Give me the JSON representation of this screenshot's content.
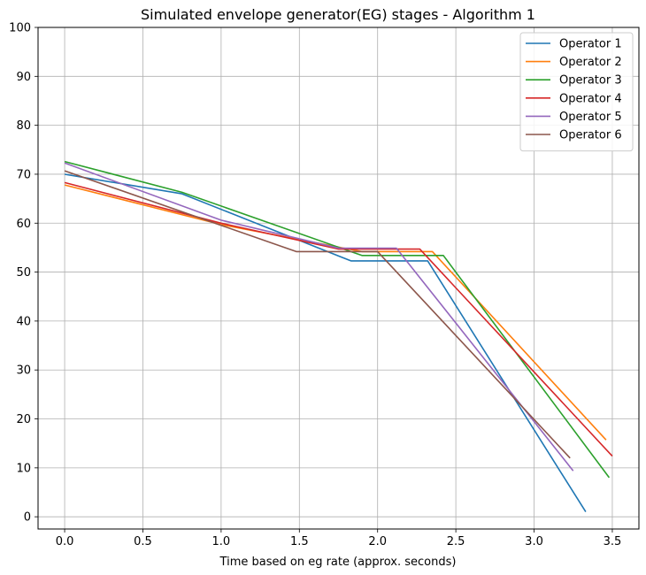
{
  "chart_data": {
    "type": "line",
    "title": "Simulated envelope generator(EG) stages - Algorithm 1",
    "xlabel": "Time based on eg rate (approx. seconds)",
    "ylabel": "",
    "xlim": [
      -0.17,
      3.67
    ],
    "ylim": [
      -2.5,
      100
    ],
    "xticks": [
      0.0,
      0.5,
      1.0,
      1.5,
      2.0,
      2.5,
      3.0,
      3.5
    ],
    "xtick_labels": [
      "0.0",
      "0.5",
      "1.0",
      "1.5",
      "2.0",
      "2.5",
      "3.0",
      "3.5"
    ],
    "yticks": [
      0,
      10,
      20,
      30,
      40,
      50,
      60,
      70,
      80,
      90,
      100
    ],
    "ytick_labels": [
      "0",
      "10",
      "20",
      "30",
      "40",
      "50",
      "60",
      "70",
      "80",
      "90",
      "100"
    ],
    "grid": true,
    "legend_position": "top-right",
    "series": [
      {
        "name": "Operator 1",
        "color": "#1f77b4",
        "points": [
          [
            0.0,
            70.0
          ],
          [
            0.75,
            66.0
          ],
          [
            1.83,
            52.3
          ],
          [
            2.32,
            52.3
          ],
          [
            3.33,
            1.0
          ]
        ]
      },
      {
        "name": "Operator 2",
        "color": "#ff7f0e",
        "points": [
          [
            0.0,
            67.8
          ],
          [
            1.0,
            59.7
          ],
          [
            1.9,
            54.2
          ],
          [
            2.35,
            54.2
          ],
          [
            3.46,
            15.7
          ]
        ]
      },
      {
        "name": "Operator 3",
        "color": "#2ca02c",
        "points": [
          [
            0.0,
            72.6
          ],
          [
            0.75,
            66.3
          ],
          [
            1.9,
            53.4
          ],
          [
            2.42,
            53.4
          ],
          [
            3.48,
            8.0
          ]
        ]
      },
      {
        "name": "Operator 4",
        "color": "#d62728",
        "points": [
          [
            0.0,
            68.3
          ],
          [
            1.0,
            60.0
          ],
          [
            1.75,
            54.7
          ],
          [
            2.27,
            54.7
          ],
          [
            3.5,
            12.4
          ]
        ]
      },
      {
        "name": "Operator 5",
        "color": "#9467bd",
        "points": [
          [
            0.0,
            72.3
          ],
          [
            1.0,
            60.6
          ],
          [
            1.75,
            54.9
          ],
          [
            2.12,
            54.9
          ],
          [
            3.25,
            9.4
          ]
        ]
      },
      {
        "name": "Operator 6",
        "color": "#8c564b",
        "points": [
          [
            0.0,
            70.7
          ],
          [
            1.48,
            54.2
          ],
          [
            2.0,
            54.2
          ],
          [
            3.23,
            12.0
          ]
        ]
      }
    ]
  }
}
